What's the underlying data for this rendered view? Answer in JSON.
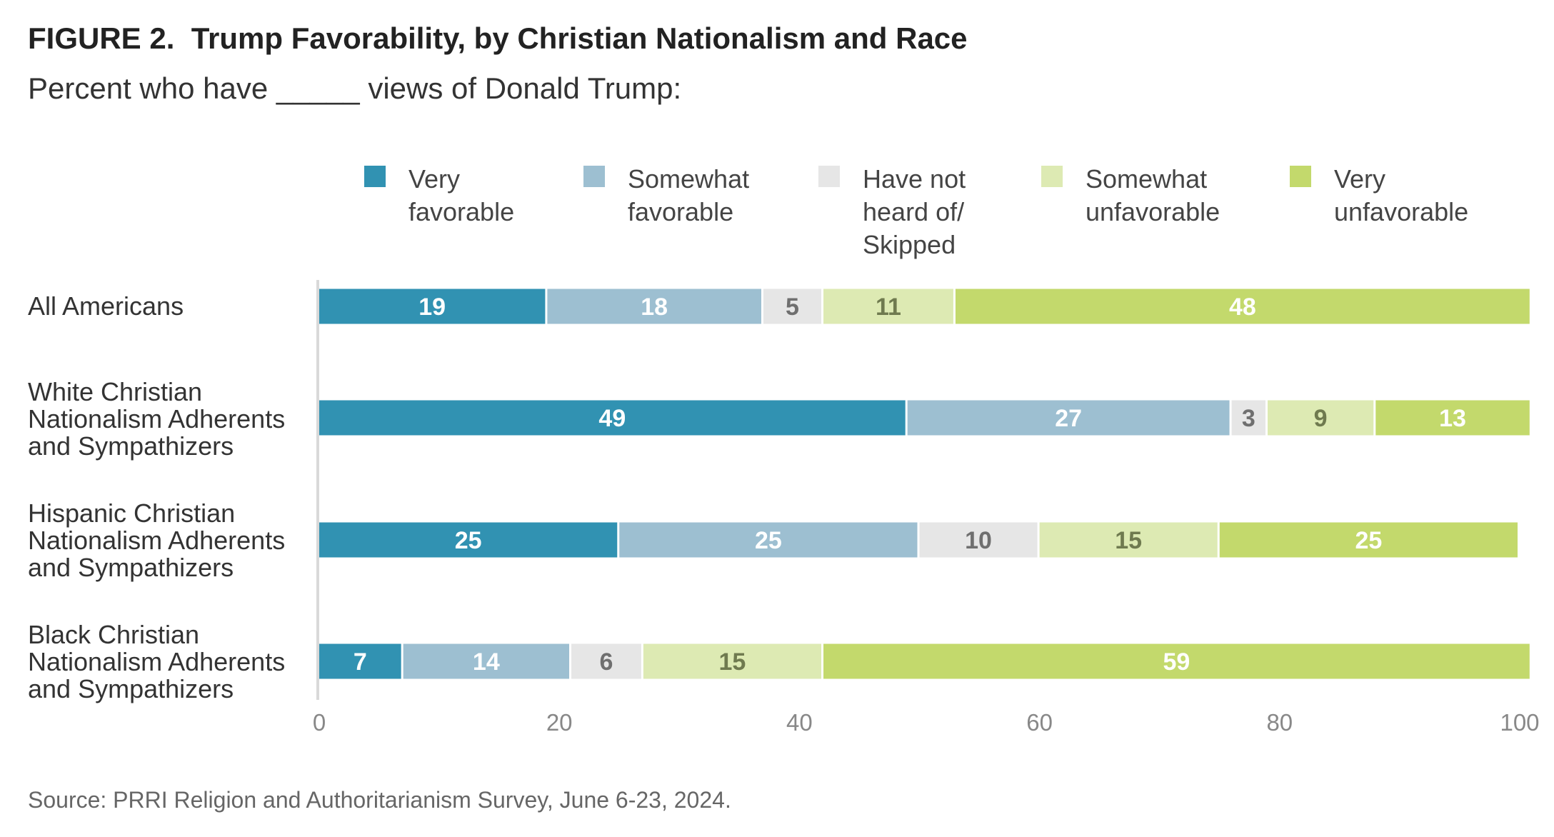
{
  "title": "FIGURE 2.  Trump Favorability, by Christian Nationalism and Race",
  "subtitle": "Percent who have _____ views of Donald Trump:",
  "source": "Source: PRRI Religion and Authoritarianism Survey, June 6-23, 2024.",
  "chart_data": {
    "type": "bar",
    "orientation": "horizontal",
    "stacked": true,
    "title": "FIGURE 2.  Trump Favorability, by Christian Nationalism and Race",
    "subtitle": "Percent who have _____ views of Donald Trump:",
    "xlim": [
      0,
      100
    ],
    "xticks": [
      0,
      20,
      40,
      60,
      80,
      100
    ],
    "grid": false,
    "legend_position": "top",
    "categories": [
      "All Americans",
      "White Christian\nNationalism Adherents\nand Sympathizers",
      "Hispanic Christian\nNationalism Adherents\nand Sympathizers",
      "Black Christian\nNationalism Adherents\nand Sympathizers"
    ],
    "series": [
      {
        "name": "Very\nfavorable",
        "color": "#3192b2",
        "label_color": "#ffffff",
        "values": [
          19,
          49,
          25,
          7
        ]
      },
      {
        "name": "Somewhat\nfavorable",
        "color": "#9dbfd1",
        "label_color": "#ffffff",
        "values": [
          18,
          27,
          25,
          14
        ]
      },
      {
        "name": "Have not\nheard of/\nSkipped",
        "color": "#e6e6e6",
        "label_color": "#6f6f6f",
        "values": [
          5,
          3,
          10,
          6
        ]
      },
      {
        "name": "Somewhat\nunfavorable",
        "color": "#ddeab3",
        "label_color": "#6f7a4f",
        "values": [
          11,
          9,
          15,
          15
        ]
      },
      {
        "name": "Very\nunfavorable",
        "color": "#c3d96c",
        "label_color": "#ffffff",
        "values": [
          48,
          13,
          25,
          59
        ]
      }
    ]
  }
}
